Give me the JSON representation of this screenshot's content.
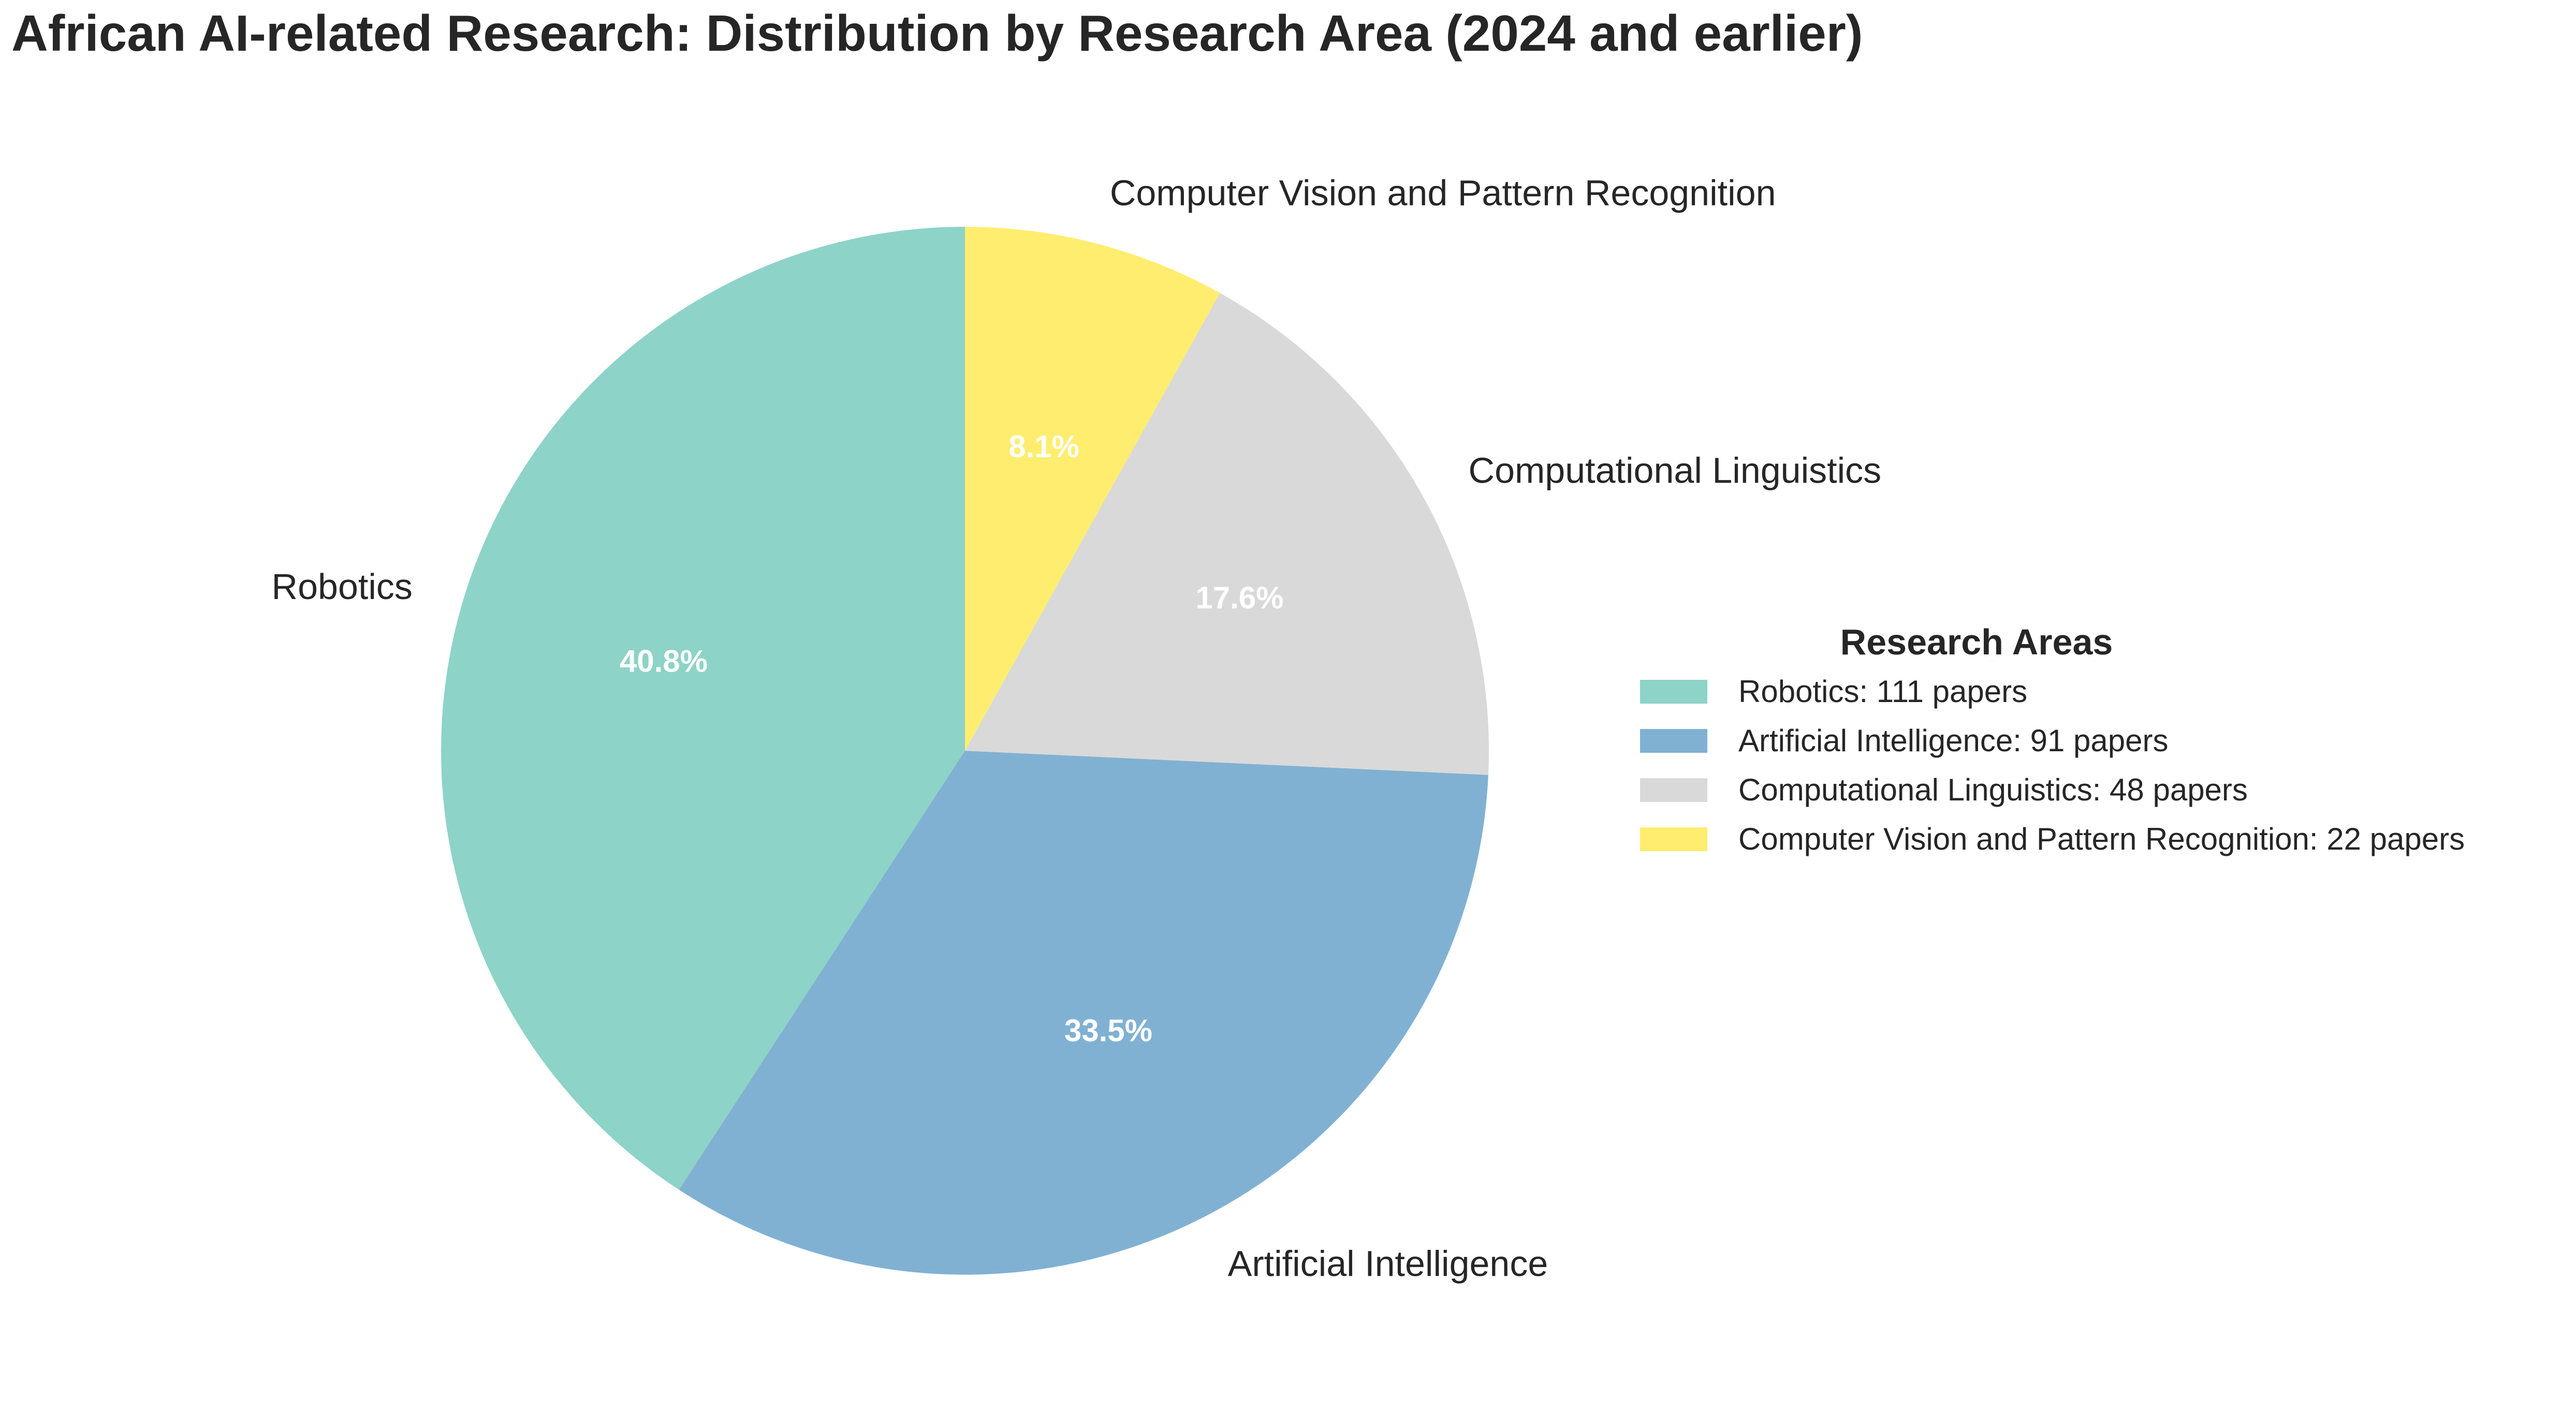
{
  "title": "African AI-related Research: Distribution by Research Area (2024 and earlier)",
  "chart_data": {
    "type": "pie",
    "title": "African AI-related Research: Distribution by Research Area (2024 and earlier)",
    "start_angle_deg": 90,
    "direction": "counterclockwise",
    "slices": [
      {
        "label": "Robotics",
        "value": 111,
        "percent_label": "40.8%",
        "color": "#8dd3c7"
      },
      {
        "label": "Artificial Intelligence",
        "value": 91,
        "percent_label": "33.5%",
        "color": "#80b1d3"
      },
      {
        "label": "Computational Linguistics",
        "value": 48,
        "percent_label": "17.6%",
        "color": "#d9d9d9"
      },
      {
        "label": "Computer Vision and Pattern Recognition",
        "value": 22,
        "percent_label": "8.1%",
        "color": "#ffed6f"
      }
    ],
    "legend": {
      "title": "Research Areas",
      "placement": "right",
      "entries": [
        "Robotics: 111 papers",
        "Artificial Intelligence: 91 papers",
        "Computational Linguistics: 48 papers",
        "Computer Vision and Pattern Recognition: 22 papers"
      ]
    }
  }
}
